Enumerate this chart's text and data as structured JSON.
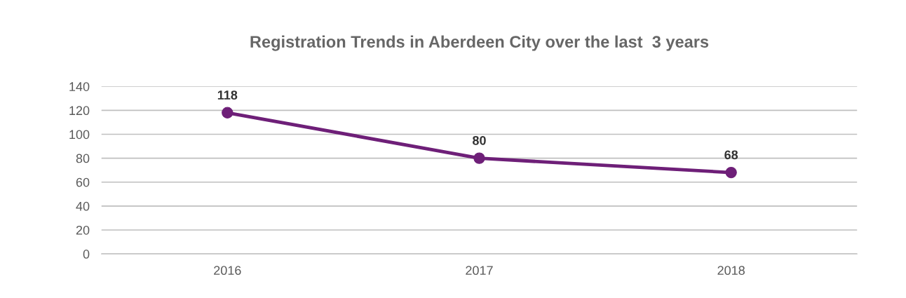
{
  "chart_data": {
    "type": "line",
    "title": "Registration Trends in Aberdeen City over the last  3 years",
    "categories": [
      "2016",
      "2017",
      "2018"
    ],
    "series": [
      {
        "color": "#6e1f78",
        "values": [
          118,
          80,
          68
        ]
      }
    ],
    "ylim": [
      0,
      140
    ],
    "yticks": [
      0,
      20,
      40,
      60,
      80,
      100,
      120,
      140
    ],
    "grid": "y",
    "marker": "circle",
    "line_style": "solid",
    "data_labels": true
  }
}
